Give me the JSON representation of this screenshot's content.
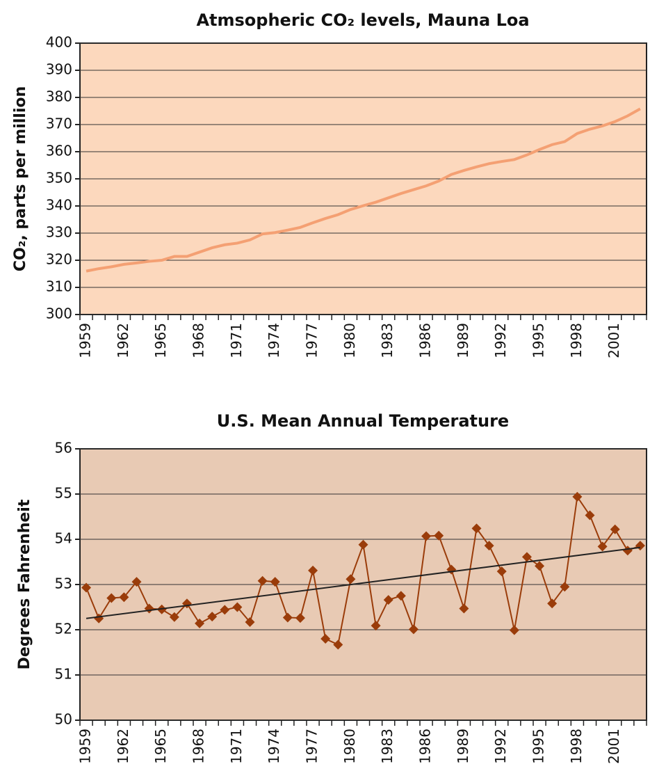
{
  "chart_data": [
    {
      "type": "line",
      "title": "Atmsopheric CO₂ levels, Mauna Loa",
      "y_label": "CO₂, parts per million",
      "categories": [
        "1959",
        null,
        null,
        "1962",
        null,
        null,
        "1965",
        null,
        null,
        "1968",
        null,
        null,
        "1971",
        null,
        null,
        "1974",
        null,
        null,
        "1977",
        null,
        null,
        "1980",
        null,
        null,
        "1983",
        null,
        null,
        "1986",
        null,
        null,
        "1989",
        null,
        null,
        "1992",
        null,
        null,
        "1995",
        null,
        null,
        "1998",
        null,
        null,
        "2001",
        null,
        null
      ],
      "series": [
        {
          "color": "#f4a073",
          "values": [
            316.0,
            316.9,
            317.6,
            318.5,
            319.0,
            319.6,
            320.0,
            321.4,
            321.4,
            323.0,
            324.6,
            325.7,
            326.3,
            327.5,
            329.7,
            330.2,
            331.1,
            332.1,
            333.8,
            335.4,
            336.8,
            338.7,
            340.1,
            341.4,
            343.0,
            344.6,
            346.0,
            347.4,
            349.2,
            351.6,
            353.1,
            354.4,
            355.6,
            356.4,
            357.1,
            358.8,
            360.8,
            362.6,
            363.7,
            366.7,
            368.3,
            369.5,
            371.1,
            373.2,
            375.8
          ]
        }
      ],
      "ylim": [
        300,
        400
      ],
      "yticks": [
        300,
        310,
        320,
        330,
        340,
        350,
        360,
        370,
        380,
        390,
        400
      ],
      "grid": true,
      "background": "#fcd8bd"
    },
    {
      "type": "line",
      "title": "U.S. Mean Annual Temperature",
      "y_label": "Degrees Fahrenheit",
      "categories": [
        "1959",
        null,
        null,
        "1962",
        null,
        null,
        "1965",
        null,
        null,
        "1968",
        null,
        null,
        "1971",
        null,
        null,
        "1974",
        null,
        null,
        "1977",
        null,
        null,
        "1980",
        null,
        null,
        "1983",
        null,
        null,
        "1986",
        null,
        null,
        "1989",
        null,
        null,
        "1992",
        null,
        null,
        "1995",
        null,
        null,
        "1998",
        null,
        null,
        "2001",
        null,
        null
      ],
      "series": [
        {
          "color": "#9a3c0a",
          "marker": "diamond",
          "values": [
            52.93,
            52.25,
            52.7,
            52.72,
            53.06,
            52.47,
            52.45,
            52.28,
            52.58,
            52.14,
            52.29,
            52.44,
            52.5,
            52.17,
            53.08,
            53.06,
            52.27,
            52.26,
            53.31,
            51.8,
            51.67,
            53.12,
            53.88,
            52.09,
            52.66,
            52.75,
            52.01,
            54.07,
            54.08,
            53.33,
            52.47,
            54.24,
            53.86,
            53.29,
            51.99,
            53.61,
            53.41,
            52.58,
            52.95,
            54.94,
            54.53,
            53.84,
            54.22,
            53.75,
            53.86
          ]
        }
      ],
      "trend": [
        52.25,
        53.82
      ],
      "trend_color": "#222222",
      "ylim": [
        50,
        56
      ],
      "yticks": [
        50,
        51,
        52,
        53,
        54,
        55,
        56
      ],
      "grid": true,
      "background": "#e8cab4"
    }
  ]
}
